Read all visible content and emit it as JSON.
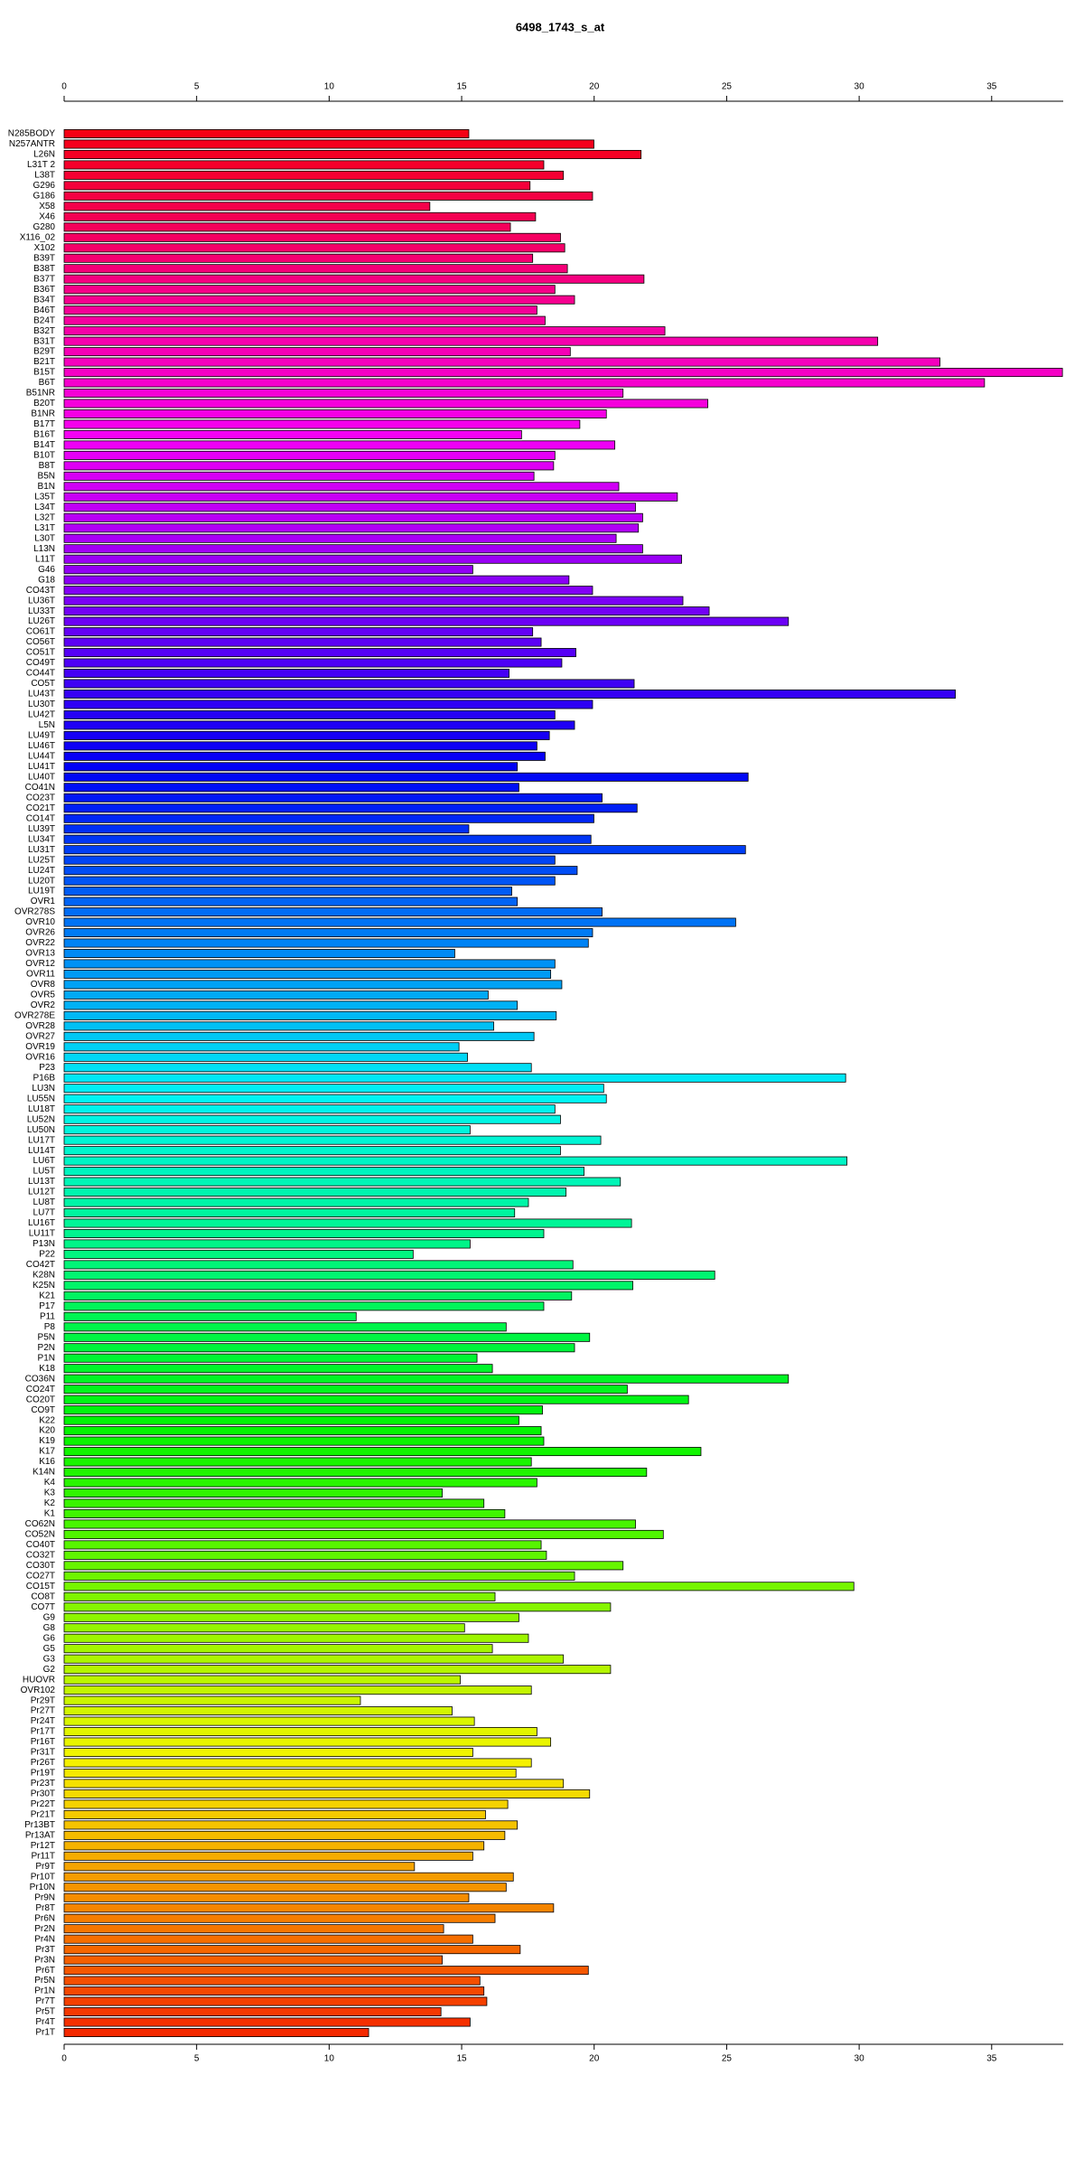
{
  "chart_data": {
    "type": "bar",
    "orientation": "horizontal",
    "title": "6498_1743_s_at",
    "categories": [
      "N285BODY",
      "N257ANTR",
      "L26N",
      "L31T 2",
      "L38T",
      "G296",
      "G186",
      "X58",
      "X46",
      "G280",
      "X116_02",
      "X102",
      "B39T",
      "B38T",
      "B37T",
      "B36T",
      "B34T",
      "B46T",
      "B24T",
      "B32T",
      "B31T",
      "B29T",
      "B21T",
      "B15T",
      "B6T",
      "B51NR",
      "B20T",
      "B1NR",
      "B17T",
      "B16T",
      "B14T",
      "B10T",
      "B8T",
      "B5N",
      "B1N",
      "L35T",
      "L34T",
      "L32T",
      "L31T",
      "L30T",
      "L13N",
      "L11T",
      "G46",
      "G18",
      "CO43T",
      "LU36T",
      "LU33T",
      "LU26T",
      "CO61T",
      "CO56T",
      "CO51T",
      "CO49T",
      "CO44T",
      "CO5T",
      "LU43T",
      "LU30T",
      "LU42T",
      "L5N",
      "LU49T",
      "LU46T",
      "LU44T",
      "LU41T",
      "LU40T",
      "CO41N",
      "CO23T",
      "CO21T",
      "CO14T",
      "LU39T",
      "LU34T",
      "LU31T",
      "LU25T",
      "LU24T",
      "LU20T",
      "LU19T",
      "OVR1",
      "OVR278S",
      "OVR10",
      "OVR26",
      "OVR22",
      "OVR13",
      "OVR12",
      "OVR11",
      "OVR8",
      "OVR5",
      "OVR2",
      "OVR278E",
      "OVR28",
      "OVR27",
      "OVR19",
      "OVR16",
      "P23",
      "P16B",
      "LU3N",
      "LU55N",
      "LU18T",
      "LU52N",
      "LU50N",
      "LU17T",
      "LU14T",
      "LU6T",
      "LU5T",
      "LU13T",
      "LU12T",
      "LU8T",
      "LU7T",
      "LU16T",
      "LU11T",
      "P13N",
      "P22",
      "CO42T",
      "K28N",
      "K25N",
      "K21",
      "P17",
      "P11",
      "P8",
      "P5N",
      "P2N",
      "P1N",
      "K18",
      "CO36N",
      "CO24T",
      "CO20T",
      "CO9T",
      "K22",
      "K20",
      "K19",
      "K17",
      "K16",
      "K14N",
      "K4",
      "K3",
      "K2",
      "K1",
      "CO62N",
      "CO52N",
      "CO40T",
      "CO32T",
      "CO30T",
      "CO27T",
      "CO15T",
      "CO8T",
      "CO7T",
      "G9",
      "G8",
      "G6",
      "G5",
      "G3",
      "G2",
      "HUOVR",
      "OVR102",
      "Pr29T",
      "Pr27T",
      "Pr24T",
      "Pr17T",
      "Pr16T",
      "Pr31T",
      "Pr26T",
      "Pr19T",
      "Pr23T",
      "Pr30T",
      "Pr22T",
      "Pr21T",
      "Pr13BT",
      "Pr13AT",
      "Pr12T",
      "Pr11T",
      "Pr9T",
      "Pr10T",
      "Pr10N",
      "Pr9N",
      "Pr8T",
      "Pr6N",
      "Pr2N",
      "Pr4N",
      "Pr3T",
      "Pr3N",
      "Pr6T",
      "Pr5N",
      "Pr1N",
      "Pr7T",
      "Pr5T",
      "Pr4T",
      "Pr1T"
    ],
    "values": [
      15.27,
      19.99,
      21.77,
      18.1,
      18.84,
      17.58,
      19.94,
      13.8,
      17.79,
      16.84,
      18.73,
      18.89,
      17.68,
      18.99,
      21.88,
      18.52,
      19.26,
      17.84,
      18.15,
      22.67,
      30.7,
      19.1,
      33.05,
      37.67,
      34.73,
      21.09,
      24.29,
      20.46,
      19.46,
      17.26,
      20.78,
      18.52,
      18.47,
      17.73,
      20.93,
      23.14,
      21.56,
      21.83,
      21.67,
      20.83,
      21.83,
      23.3,
      15.42,
      19.05,
      19.94,
      23.35,
      24.34,
      27.33,
      17.68,
      18.0,
      19.31,
      18.78,
      16.79,
      21.51,
      33.63,
      19.94,
      18.52,
      19.26,
      18.31,
      17.84,
      18.15,
      17.1,
      25.81,
      17.16,
      20.3,
      21.62,
      19.99,
      15.27,
      19.88,
      25.71,
      18.52,
      19.36,
      18.52,
      16.89,
      17.1,
      20.3,
      25.34,
      19.94,
      19.78,
      14.74,
      18.52,
      18.36,
      18.78,
      16.0,
      17.1,
      18.57,
      16.21,
      17.73,
      14.9,
      15.22,
      17.63,
      29.49,
      20.36,
      20.46,
      18.52,
      18.73,
      15.32,
      20.25,
      18.73,
      29.54,
      19.62,
      20.99,
      18.94,
      17.52,
      17.0,
      21.41,
      18.1,
      15.32,
      13.17,
      19.2,
      24.55,
      21.46,
      19.15,
      18.1,
      11.02,
      16.68,
      19.83,
      19.26,
      15.58,
      16.16,
      27.33,
      21.25,
      23.56,
      18.05,
      17.16,
      18.0,
      18.1,
      24.03,
      17.63,
      21.98,
      17.84,
      14.27,
      15.84,
      16.63,
      21.56,
      22.61,
      18.0,
      18.2,
      21.09,
      19.26,
      29.8,
      16.26,
      20.62,
      17.16,
      15.11,
      17.52,
      16.16,
      18.84,
      20.62,
      14.95,
      17.63,
      11.18,
      14.64,
      15.48,
      17.84,
      18.36,
      15.42,
      17.63,
      17.05,
      18.84,
      19.83,
      16.74,
      15.9,
      17.1,
      16.63,
      15.84,
      15.42,
      13.22,
      16.95,
      16.68,
      15.27,
      18.47,
      16.26,
      14.32,
      15.42,
      17.21,
      14.27,
      19.78,
      15.69,
      15.84,
      15.95,
      14.22,
      15.32,
      11.49
    ],
    "hue_range": [
      355,
      10
    ],
    "xlim": [
      0,
      37.7
    ],
    "xticks": [
      0,
      5,
      10,
      15,
      20,
      25,
      30,
      35
    ],
    "x_axis_sides": [
      "top",
      "bottom"
    ]
  }
}
